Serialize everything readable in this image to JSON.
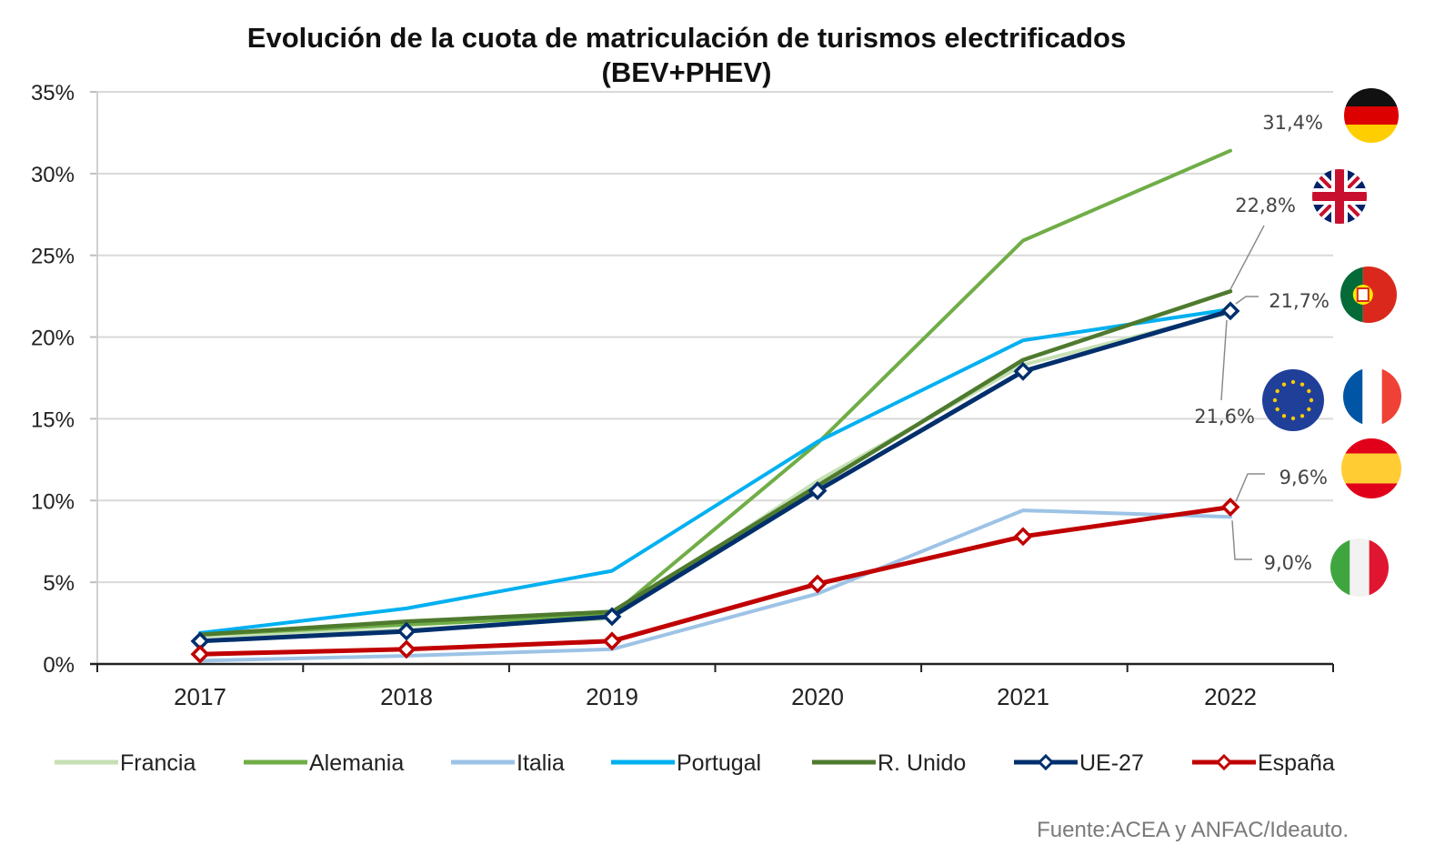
{
  "chart_data": {
    "type": "line",
    "title": "Evolución de la cuota de matriculación de turismos electrificados",
    "subtitle": "(BEV+PHEV)",
    "xlabel": "",
    "ylabel": "",
    "x": [
      "2017",
      "2018",
      "2019",
      "2020",
      "2021",
      "2022"
    ],
    "ylim": [
      0,
      35
    ],
    "yticks": [
      0,
      5,
      10,
      15,
      20,
      25,
      30,
      35
    ],
    "ytick_labels": [
      "0%",
      "5%",
      "10%",
      "15%",
      "20%",
      "25%",
      "30%",
      "35%"
    ],
    "grid": true,
    "legend_position": "bottom",
    "series": [
      {
        "name": "Francia",
        "color": "#c5e0b4",
        "markers": false,
        "values": [
          1.7,
          2.1,
          2.8,
          11.2,
          18.3,
          21.5
        ]
      },
      {
        "name": "Alemania",
        "color": "#70ad47",
        "markers": false,
        "values": [
          1.8,
          2.4,
          3.0,
          13.5,
          25.9,
          31.4
        ]
      },
      {
        "name": "Italia",
        "color": "#9dc3e6",
        "markers": false,
        "values": [
          0.2,
          0.5,
          0.9,
          4.3,
          9.4,
          9.0
        ]
      },
      {
        "name": "Portugal",
        "color": "#00b0f0",
        "markers": false,
        "values": [
          1.9,
          3.4,
          5.7,
          13.6,
          19.8,
          21.7
        ]
      },
      {
        "name": "R. Unido",
        "color": "#4e7a2e",
        "markers": false,
        "values": [
          1.8,
          2.6,
          3.2,
          10.9,
          18.6,
          22.8
        ]
      },
      {
        "name": "UE-27",
        "color": "#002f6c",
        "markers": true,
        "values": [
          1.4,
          2.0,
          2.9,
          10.6,
          17.9,
          21.6
        ]
      },
      {
        "name": "España",
        "color": "#c00000",
        "markers": true,
        "values": [
          0.6,
          0.9,
          1.4,
          4.9,
          7.8,
          9.6
        ]
      }
    ],
    "annotations": [
      {
        "series": "Alemania",
        "label": "31,4%"
      },
      {
        "series": "R. Unido",
        "label": "22,8%"
      },
      {
        "series": "Portugal",
        "label": "21,7%"
      },
      {
        "series": "UE-27",
        "label": "21,6%"
      },
      {
        "series": "España",
        "label": "9,6%"
      },
      {
        "series": "Italia",
        "label": "9,0%"
      }
    ],
    "flag_icons": [
      "germany-flag",
      "uk-flag",
      "portugal-flag",
      "eu-flag",
      "france-flag",
      "spain-flag",
      "italy-flag"
    ],
    "source": "Fuente:ACEA y ANFAC/Ideauto."
  }
}
